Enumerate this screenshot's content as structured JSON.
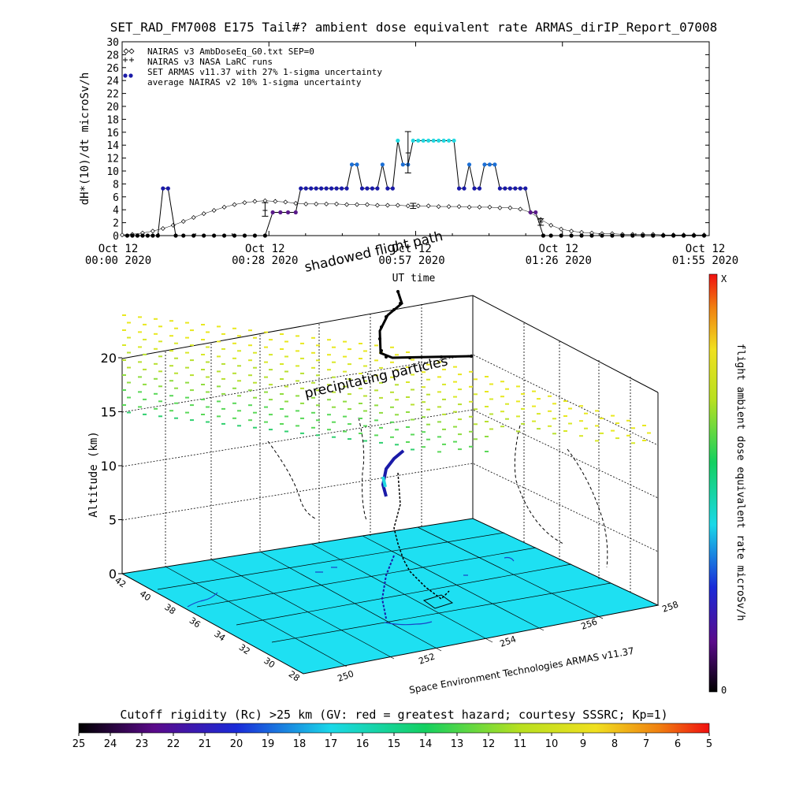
{
  "header": {
    "title": "SET_RAD_FM7008  E175 Tail#? ambient dose equivalent rate ARMAS_dirIP_Report_07008"
  },
  "colors": {
    "black_series": "#000000",
    "navy": "#1a1aa8",
    "blue": "#1b6fd6",
    "cyan": "#22d8e0",
    "purple": "#5a1a8a",
    "ground": "#1ee0f2"
  },
  "chart_data": [
    {
      "type": "line",
      "ylabel": "dH*(10)/dt microSv/h",
      "ylim": [
        0,
        30
      ],
      "yticks": [
        "0",
        "2",
        "4",
        "6",
        "8",
        "10",
        "12",
        "14",
        "16",
        "18",
        "20",
        "22",
        "24",
        "26",
        "28",
        "30"
      ],
      "xticks": [
        {
          "line1": "Oct 12",
          "line2": "00:00 2020"
        },
        {
          "line1": "Oct 12",
          "line2": "00:28 2020"
        },
        {
          "line1": "Oct 12",
          "line2": "00:57 2020"
        },
        {
          "line1": "Oct 12",
          "line2": "01:26 2020"
        },
        {
          "line1": "Oct 12",
          "line2": "01:55 2020"
        }
      ],
      "xlabel": "UT time",
      "xlim_min": [
        0,
        115
      ],
      "legend": [
        "NAIRAS v3 AmbDoseEq_G0.txt SEP=0",
        "NAIRAS v3 NASA LaRC runs",
        "SET ARMAS v11.37 with 27% 1-sigma uncertainty",
        "average NAIRAS v2 10% 1-sigma uncertainty"
      ],
      "series": [
        {
          "name": "SET ARMAS v11.37 with 27% 1-sigma uncertainty",
          "points": [
            {
              "t": 1,
              "v": 0
            },
            {
              "t": 2,
              "v": 0
            },
            {
              "t": 3,
              "v": 0
            },
            {
              "t": 4,
              "v": 0
            },
            {
              "t": 5,
              "v": 0
            },
            {
              "t": 6,
              "v": 0
            },
            {
              "t": 7,
              "v": 0
            },
            {
              "t": 8,
              "v": 7.3
            },
            {
              "t": 9,
              "v": 7.3
            },
            {
              "t": 10.5,
              "v": 0
            },
            {
              "t": 12,
              "v": 0
            },
            {
              "t": 14,
              "v": 0
            },
            {
              "t": 16,
              "v": 0
            },
            {
              "t": 18,
              "v": 0
            },
            {
              "t": 20,
              "v": 0
            },
            {
              "t": 22,
              "v": 0
            },
            {
              "t": 24,
              "v": 0
            },
            {
              "t": 26,
              "v": 0
            },
            {
              "t": 28,
              "v": 0
            },
            {
              "t": 29.5,
              "v": 3.6
            },
            {
              "t": 31,
              "v": 3.6
            },
            {
              "t": 32.5,
              "v": 3.6
            },
            {
              "t": 34,
              "v": 3.6
            },
            {
              "t": 35,
              "v": 7.3
            },
            {
              "t": 36,
              "v": 7.3
            },
            {
              "t": 37,
              "v": 7.3
            },
            {
              "t": 38,
              "v": 7.3
            },
            {
              "t": 39,
              "v": 7.3
            },
            {
              "t": 40,
              "v": 7.3
            },
            {
              "t": 41,
              "v": 7.3
            },
            {
              "t": 42,
              "v": 7.3
            },
            {
              "t": 43,
              "v": 7.3
            },
            {
              "t": 44,
              "v": 7.3
            },
            {
              "t": 45,
              "v": 11
            },
            {
              "t": 46,
              "v": 11
            },
            {
              "t": 47,
              "v": 7.3
            },
            {
              "t": 48,
              "v": 7.3
            },
            {
              "t": 49,
              "v": 7.3
            },
            {
              "t": 50,
              "v": 7.3
            },
            {
              "t": 51,
              "v": 11
            },
            {
              "t": 52,
              "v": 7.3
            },
            {
              "t": 53,
              "v": 7.3
            },
            {
              "t": 54,
              "v": 14.7
            },
            {
              "t": 55,
              "v": 11
            },
            {
              "t": 56,
              "v": 11
            },
            {
              "t": 57,
              "v": 14.7
            },
            {
              "t": 58,
              "v": 14.7
            },
            {
              "t": 59,
              "v": 14.7
            },
            {
              "t": 60,
              "v": 14.7
            },
            {
              "t": 61,
              "v": 14.7
            },
            {
              "t": 62,
              "v": 14.7
            },
            {
              "t": 63,
              "v": 14.7
            },
            {
              "t": 64,
              "v": 14.7
            },
            {
              "t": 65,
              "v": 14.7
            },
            {
              "t": 66,
              "v": 7.3
            },
            {
              "t": 67,
              "v": 7.3
            },
            {
              "t": 68,
              "v": 11
            },
            {
              "t": 69,
              "v": 7.3
            },
            {
              "t": 70,
              "v": 7.3
            },
            {
              "t": 71,
              "v": 11
            },
            {
              "t": 72,
              "v": 11
            },
            {
              "t": 73,
              "v": 11
            },
            {
              "t": 74,
              "v": 7.3
            },
            {
              "t": 75,
              "v": 7.3
            },
            {
              "t": 76,
              "v": 7.3
            },
            {
              "t": 77,
              "v": 7.3
            },
            {
              "t": 78,
              "v": 7.3
            },
            {
              "t": 79,
              "v": 7.3
            },
            {
              "t": 80,
              "v": 3.6
            },
            {
              "t": 81,
              "v": 3.6
            },
            {
              "t": 82.5,
              "v": 0
            },
            {
              "t": 84,
              "v": 0
            },
            {
              "t": 86,
              "v": 0
            },
            {
              "t": 88,
              "v": 0
            },
            {
              "t": 90,
              "v": 0
            },
            {
              "t": 92,
              "v": 0
            },
            {
              "t": 94,
              "v": 0
            },
            {
              "t": 96,
              "v": 0
            },
            {
              "t": 98,
              "v": 0
            },
            {
              "t": 100,
              "v": 0
            },
            {
              "t": 102,
              "v": 0
            },
            {
              "t": 104,
              "v": 0
            },
            {
              "t": 106,
              "v": 0
            },
            {
              "t": 108,
              "v": 0
            },
            {
              "t": 110,
              "v": 0
            },
            {
              "t": 112,
              "v": 0
            },
            {
              "t": 114,
              "v": 0
            }
          ]
        },
        {
          "name": "NAIRAS v3 AmbDoseEq_G0.txt SEP=0",
          "points": [
            {
              "t": 0,
              "v": 0.1
            },
            {
              "t": 2,
              "v": 0.2
            },
            {
              "t": 4,
              "v": 0.4
            },
            {
              "t": 6,
              "v": 0.7
            },
            {
              "t": 8,
              "v": 1.1
            },
            {
              "t": 10,
              "v": 1.6
            },
            {
              "t": 12,
              "v": 2.2
            },
            {
              "t": 14,
              "v": 2.8
            },
            {
              "t": 16,
              "v": 3.4
            },
            {
              "t": 18,
              "v": 3.9
            },
            {
              "t": 20,
              "v": 4.4
            },
            {
              "t": 22,
              "v": 4.8
            },
            {
              "t": 24,
              "v": 5.1
            },
            {
              "t": 26,
              "v": 5.3
            },
            {
              "t": 28,
              "v": 5.4
            },
            {
              "t": 30,
              "v": 5.3
            },
            {
              "t": 32,
              "v": 5.2
            },
            {
              "t": 34,
              "v": 5.0
            },
            {
              "t": 36,
              "v": 4.9
            },
            {
              "t": 38,
              "v": 4.9
            },
            {
              "t": 40,
              "v": 4.9
            },
            {
              "t": 42,
              "v": 4.9
            },
            {
              "t": 44,
              "v": 4.8
            },
            {
              "t": 46,
              "v": 4.8
            },
            {
              "t": 48,
              "v": 4.8
            },
            {
              "t": 50,
              "v": 4.7
            },
            {
              "t": 52,
              "v": 4.7
            },
            {
              "t": 54,
              "v": 4.7
            },
            {
              "t": 56,
              "v": 4.6
            },
            {
              "t": 58,
              "v": 4.6
            },
            {
              "t": 60,
              "v": 4.6
            },
            {
              "t": 62,
              "v": 4.5
            },
            {
              "t": 64,
              "v": 4.5
            },
            {
              "t": 66,
              "v": 4.5
            },
            {
              "t": 68,
              "v": 4.4
            },
            {
              "t": 70,
              "v": 4.4
            },
            {
              "t": 72,
              "v": 4.4
            },
            {
              "t": 74,
              "v": 4.3
            },
            {
              "t": 76,
              "v": 4.3
            },
            {
              "t": 78,
              "v": 4.1
            },
            {
              "t": 80,
              "v": 3.6
            },
            {
              "t": 82,
              "v": 2.5
            },
            {
              "t": 84,
              "v": 1.6
            },
            {
              "t": 86,
              "v": 1.0
            },
            {
              "t": 88,
              "v": 0.7
            },
            {
              "t": 90,
              "v": 0.5
            },
            {
              "t": 92,
              "v": 0.4
            },
            {
              "t": 94,
              "v": 0.3
            },
            {
              "t": 96,
              "v": 0.3
            },
            {
              "t": 98,
              "v": 0.2
            },
            {
              "t": 100,
              "v": 0.2
            },
            {
              "t": 102,
              "v": 0.2
            },
            {
              "t": 104,
              "v": 0.2
            },
            {
              "t": 106,
              "v": 0.1
            },
            {
              "t": 108,
              "v": 0.1
            },
            {
              "t": 110,
              "v": 0.1
            },
            {
              "t": 112,
              "v": 0.1
            },
            {
              "t": 114,
              "v": 0.1
            }
          ]
        },
        {
          "name": "average NAIRAS v2 10% 1-sigma uncertainty",
          "points": [
            {
              "t": 28,
              "v": 3.9,
              "low": 3.0,
              "high": 5.1
            },
            {
              "t": 57,
              "v": 4.6,
              "low": 4.2,
              "high": 5.0
            },
            {
              "t": 56,
              "v": 12.8,
              "low": 9.7,
              "high": 16.1
            },
            {
              "t": 82,
              "v": 2.1,
              "low": 1.6,
              "high": 2.6
            }
          ]
        }
      ]
    },
    {
      "type": "scatter",
      "zlabel": "Altitude (km)",
      "zticks": [
        "0",
        "5",
        "10",
        "15",
        "20"
      ],
      "lat_ticks": [
        "42",
        "40",
        "38",
        "36",
        "34",
        "32",
        "30",
        "28"
      ],
      "lon_ticks": [
        "250",
        "252",
        "254",
        "256",
        "258"
      ],
      "annotations": [
        "shadowed flight path",
        "precipitating particles"
      ],
      "credit": "Space Environment Technologies ARMAS v11.37",
      "colorbar": {
        "label": "flight ambient dose equivalent rate microSv/h",
        "top": "X",
        "bottom": "0"
      }
    },
    {
      "type": "heatmap",
      "title": "Cutoff rigidity (Rc) >25 km (GV: red = greatest hazard; courtesy SSSRC; Kp=1)",
      "ticks": [
        "25",
        "24",
        "23",
        "22",
        "21",
        "20",
        "19",
        "18",
        "17",
        "16",
        "15",
        "14",
        "13",
        "12",
        "11",
        "10",
        "9",
        "8",
        "7",
        "6",
        "5"
      ]
    }
  ]
}
